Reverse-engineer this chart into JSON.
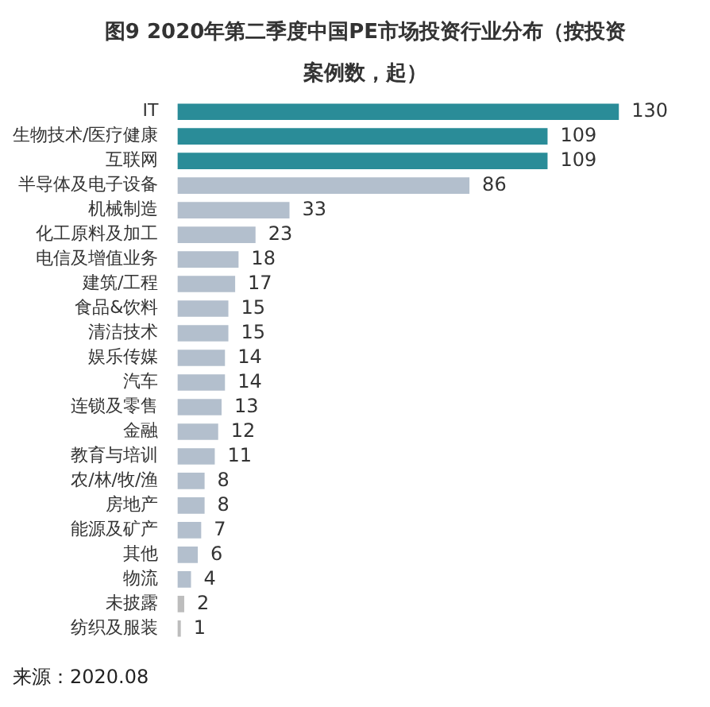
{
  "chart_data": {
    "type": "bar",
    "orientation": "horizontal",
    "title": "图9 2020年第二季度中国PE市场投资行业分布（按投资案例数，起）",
    "categories": [
      "IT",
      "生物技术/医疗健康",
      "互联网",
      "半导体及电子设备",
      "机械制造",
      "化工原料及加工",
      "电信及增值业务",
      "建筑/工程",
      "食品&饮料",
      "清洁技术",
      "娱乐传媒",
      "汽车",
      "连锁及零售",
      "金融",
      "教育与培训",
      "农/林/牧/渔",
      "房地产",
      "能源及矿产",
      "其他",
      "物流",
      "未披露",
      "纺织及服装"
    ],
    "values": [
      130,
      109,
      109,
      86,
      33,
      23,
      18,
      17,
      15,
      15,
      14,
      14,
      13,
      12,
      11,
      8,
      8,
      7,
      6,
      4,
      2,
      1
    ],
    "colors": [
      "#2a8c98",
      "#2a8c98",
      "#2a8c98",
      "#b3bfcd",
      "#b3bfcd",
      "#b3bfcd",
      "#b3bfcd",
      "#b3bfcd",
      "#b3bfcd",
      "#b3bfcd",
      "#b3bfcd",
      "#b3bfcd",
      "#b3bfcd",
      "#b3bfcd",
      "#b3bfcd",
      "#b3bfcd",
      "#b3bfcd",
      "#b3bfcd",
      "#b3bfcd",
      "#b3bfcd",
      "#bdbdbd",
      "#bdbdbd"
    ],
    "data_labels": true,
    "annotations": [
      "来源：2020.08"
    ]
  }
}
